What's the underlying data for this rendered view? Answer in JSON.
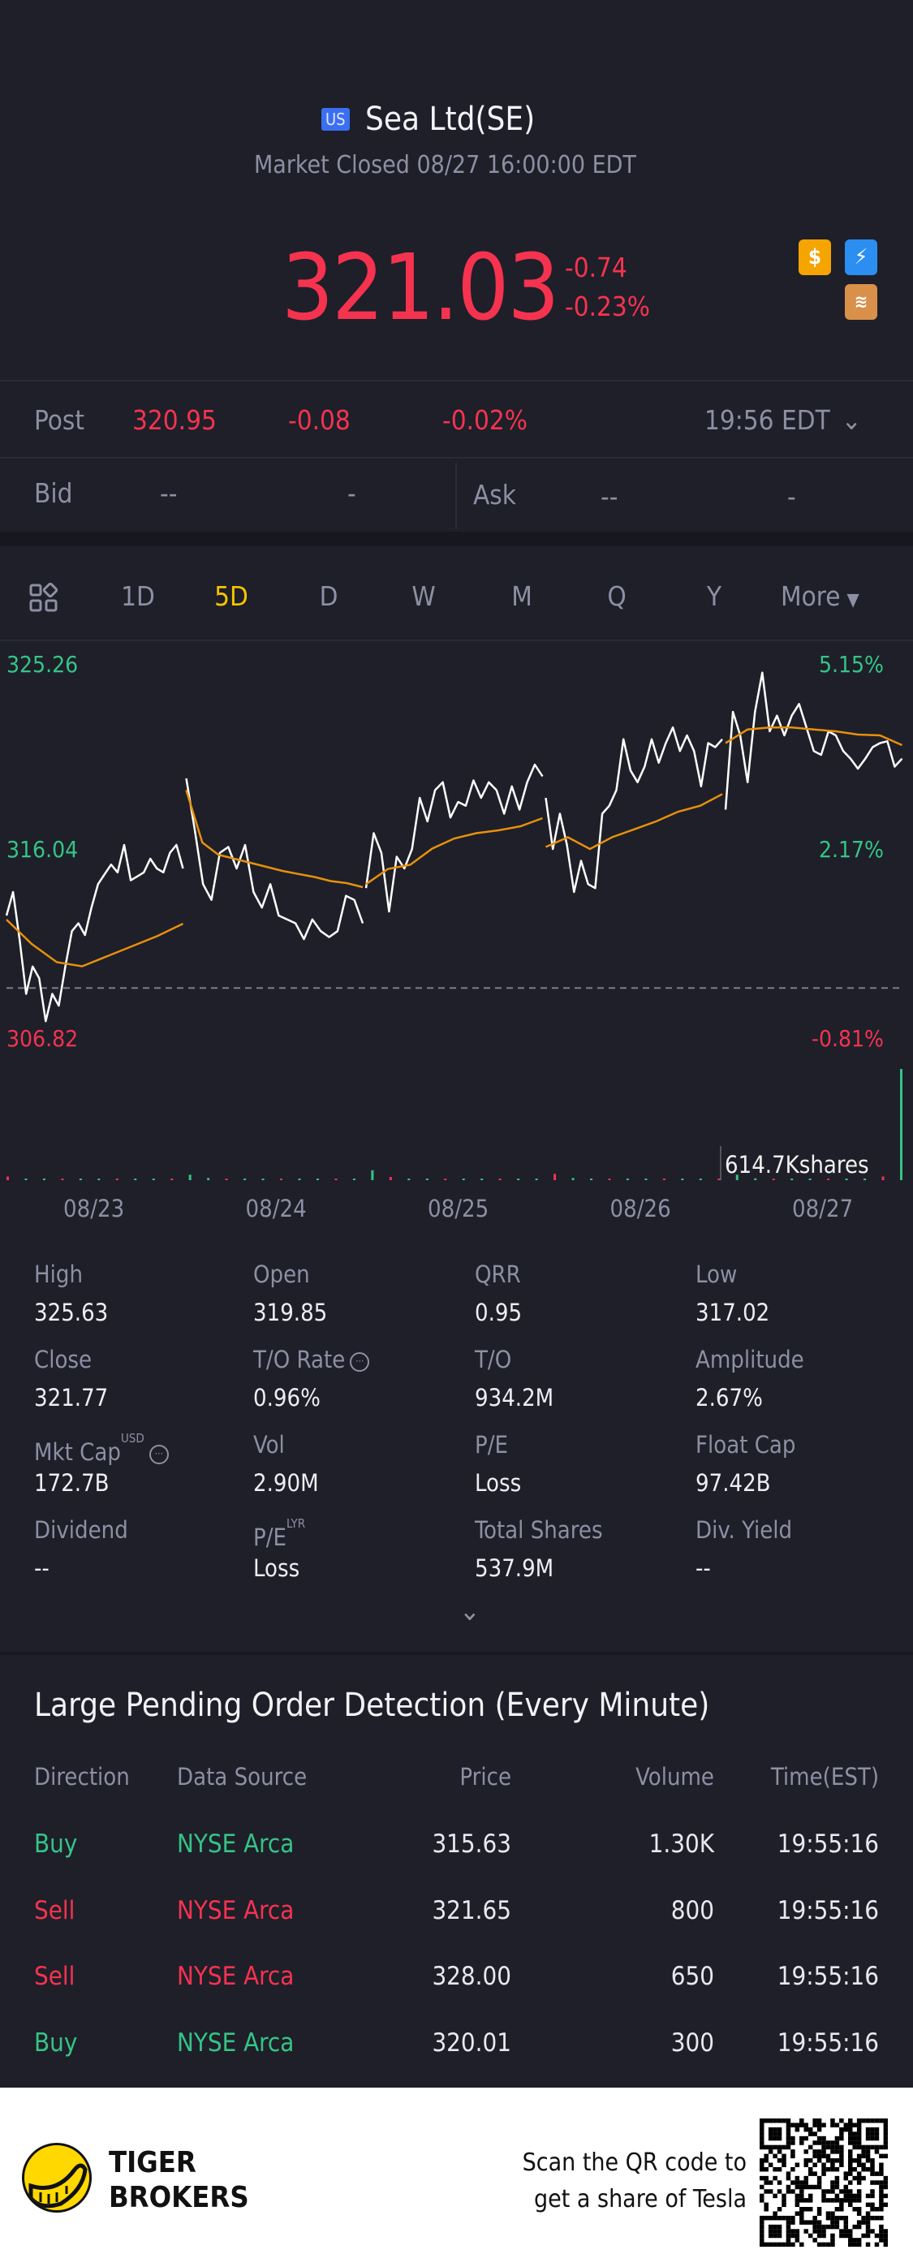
{
  "header": {
    "market_badge": "US",
    "title": "Sea Ltd(SE)",
    "status": "Market Closed 08/27 16:00:00 EDT"
  },
  "quote": {
    "price": "321.03",
    "change": "-0.74",
    "change_pct": "-0.23%"
  },
  "post": {
    "label": "Post",
    "price": "320.95",
    "change": "-0.08",
    "change_pct": "-0.02%",
    "time": "19:56 EDT"
  },
  "bidask": {
    "bid_label": "Bid",
    "bid_price": "--",
    "bid_size": "-",
    "ask_label": "Ask",
    "ask_price": "--",
    "ask_size": "-"
  },
  "tabs": {
    "items": [
      "1D",
      "5D",
      "D",
      "W",
      "M",
      "Q",
      "Y"
    ],
    "active": "5D",
    "more": "More"
  },
  "colors": {
    "up": "#35c486",
    "down": "#f5334f",
    "accent": "#f5c400",
    "avg_line": "#e8900c",
    "bg": "#1e1f29"
  },
  "chart_data": {
    "type": "line",
    "title": "",
    "y_labels": {
      "top": "325.26",
      "mid": "316.04",
      "bottom": "306.82",
      "top_pct": "5.15%",
      "mid_pct": "2.17%",
      "bottom_pct": "-0.81%"
    },
    "ylim": [
      306.82,
      325.26
    ],
    "reference_price": 309.33,
    "x_labels": [
      "08/23",
      "08/24",
      "08/25",
      "08/26",
      "08/27"
    ],
    "days": [
      {
        "price": [
          312.9,
          314.06,
          311.74,
          309.04,
          310.39,
          309.81,
          307.69,
          309.04,
          308.46,
          310.39,
          312.13,
          312.52,
          311.94,
          313.29,
          314.45,
          314.93,
          315.41,
          315.03,
          316.38,
          314.64,
          314.83,
          315.03,
          315.7,
          315.22,
          315.03,
          315.99,
          316.38,
          315.22
        ],
        "avg": [
          312.7,
          311.5,
          310.6,
          310.4,
          310.9,
          311.4,
          311.9,
          312.5
        ]
      },
      {
        "price": [
          319.66,
          317.15,
          314.45,
          313.67,
          315.99,
          316.28,
          315.22,
          316.38,
          314.06,
          313.29,
          314.45,
          312.9,
          312.71,
          312.52,
          311.74,
          312.71,
          312.13,
          311.84,
          312.13,
          313.87,
          313.67,
          312.52
        ],
        "avg": [
          319.08,
          316.5,
          315.9,
          315.7,
          315.5,
          315.3,
          315.1,
          314.95,
          314.8,
          314.6,
          314.5,
          314.3
        ]
      },
      {
        "price": [
          314.25,
          316.96,
          315.99,
          313.1,
          315.8,
          315.22,
          316.18,
          318.7,
          317.54,
          319.08,
          319.47,
          317.73,
          318.5,
          318.31,
          319.56,
          318.7,
          319.47,
          319.08,
          317.92,
          319.27,
          318.12,
          319.47,
          320.34,
          319.76
        ],
        "avg": [
          314.45,
          315.2,
          315.4,
          316.2,
          316.7,
          316.96,
          317.1,
          317.3,
          317.7
        ]
      },
      {
        "price": [
          318.7,
          316.18,
          317.92,
          316.38,
          314.06,
          315.6,
          314.45,
          314.25,
          317.92,
          318.31,
          319.08,
          321.59,
          320.05,
          319.47,
          320.24,
          321.59,
          320.43,
          321.4,
          322.17,
          321.01,
          321.78,
          321.01,
          319.27,
          321.4,
          321.2,
          321.59
        ],
        "avg": [
          316.28,
          316.76,
          316.18,
          316.76,
          317.15,
          317.54,
          318.02,
          318.31,
          318.89
        ]
      },
      {
        "price": [
          318.12,
          322.94,
          321.78,
          319.47,
          322.94,
          324.87,
          321.98,
          322.75,
          321.78,
          322.75,
          323.33,
          322.17,
          321.01,
          320.82,
          321.98,
          321.78,
          321.01,
          320.63,
          320.14,
          320.63,
          321.2,
          321.4,
          321.49,
          320.24,
          320.63
        ],
        "avg": [
          321.4,
          322.07,
          322.17,
          322.17,
          322.07,
          321.98,
          321.82,
          321.78,
          321.3
        ]
      }
    ],
    "volume_k": [
      20,
      8,
      5,
      4,
      6,
      3,
      5,
      4,
      3,
      4,
      30,
      12,
      6,
      4,
      5,
      3,
      4,
      5,
      3,
      4,
      55,
      18,
      6,
      4,
      5,
      4,
      3,
      5,
      4,
      3,
      35,
      12,
      5,
      4,
      6,
      4,
      3,
      5,
      4,
      6,
      30,
      10,
      8,
      6,
      5,
      4,
      5,
      4,
      20,
      614.7
    ],
    "volume_label": "614.7Kshares"
  },
  "stats": [
    {
      "label": "High",
      "value": "325.63"
    },
    {
      "label": "Open",
      "value": "319.85"
    },
    {
      "label": "QRR",
      "value": "0.95"
    },
    {
      "label": "Low",
      "value": "317.02"
    },
    {
      "label": "Close",
      "value": "321.77"
    },
    {
      "label": "T/O Rate",
      "value": "0.96%"
    },
    {
      "label": "T/O",
      "value": "934.2M"
    },
    {
      "label": "Amplitude",
      "value": "2.67%"
    },
    {
      "label": "Mkt Cap",
      "value": "172.7B",
      "sup": "USD"
    },
    {
      "label": "Vol",
      "value": "2.90M"
    },
    {
      "label": "P/E",
      "value": "Loss"
    },
    {
      "label": "Float Cap",
      "value": "97.42B"
    },
    {
      "label": "Dividend",
      "value": "--"
    },
    {
      "label": "P/E",
      "value": "Loss",
      "sup": "LYR"
    },
    {
      "label": "Total Shares",
      "value": "537.9M"
    },
    {
      "label": "Div. Yield",
      "value": "--"
    }
  ],
  "orders": {
    "title": "Large Pending Order Detection (Every Minute)",
    "headers": [
      "Direction",
      "Data Source",
      "Price",
      "Volume",
      "Time(EST)"
    ],
    "rows": [
      {
        "direction": "Buy",
        "source": "NYSE Arca",
        "price": "315.63",
        "volume": "1.30K",
        "time": "19:55:16"
      },
      {
        "direction": "Sell",
        "source": "NYSE Arca",
        "price": "321.65",
        "volume": "800",
        "time": "19:55:16"
      },
      {
        "direction": "Sell",
        "source": "NYSE Arca",
        "price": "328.00",
        "volume": "650",
        "time": "19:55:16"
      },
      {
        "direction": "Buy",
        "source": "NYSE Arca",
        "price": "320.01",
        "volume": "300",
        "time": "19:55:16"
      }
    ]
  },
  "footer": {
    "brand_line1": "TIGER",
    "brand_line2": "BROKERS",
    "promo_line1": "Scan the QR code to",
    "promo_line2": "get a share of Tesla"
  }
}
